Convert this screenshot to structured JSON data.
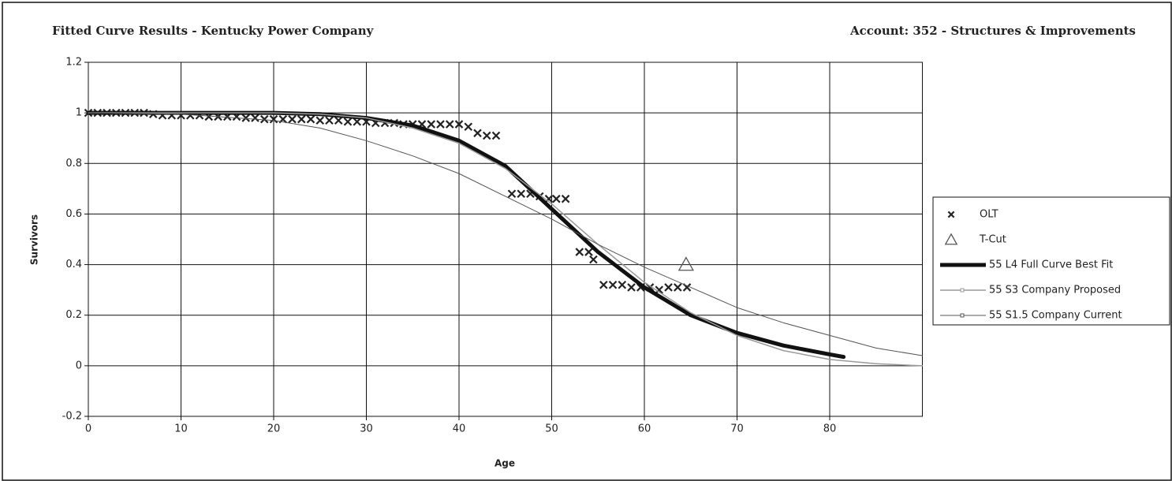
{
  "chart_data": {
    "type": "line",
    "title": "Fitted Curve Results - Kentucky Power Company",
    "subtitle": "Account:  352 - Structures & Improvements",
    "x_label": "Age",
    "y_label": "Survivors",
    "xlim": [
      0,
      90
    ],
    "ylim": [
      -0.2,
      1.2
    ],
    "xticks": [
      0,
      10,
      20,
      30,
      40,
      50,
      60,
      70,
      80
    ],
    "yticks": [
      -0.2,
      0,
      0.2,
      0.4,
      0.6,
      0.8,
      1,
      1.2
    ],
    "grid": true,
    "legend": "right",
    "series": [
      {
        "name": "OLT",
        "color": "#222222",
        "marker": "x",
        "line": false,
        "x": [
          0,
          1,
          2,
          3,
          4,
          5,
          6,
          7,
          8,
          9,
          10,
          11,
          12,
          13,
          14,
          15,
          16,
          17,
          18,
          19,
          20,
          21,
          22,
          23,
          24,
          25,
          26,
          27,
          28,
          29,
          30,
          31,
          32,
          33,
          34,
          35,
          36,
          37,
          38,
          39,
          40,
          41,
          42,
          43,
          44,
          45.7,
          46.7,
          47.7,
          48.7,
          49.7,
          50.5,
          51.5,
          53,
          54,
          54.5,
          55.6,
          56.6,
          57.6,
          58.6,
          59.6,
          60.6,
          61.6,
          62.6,
          63.6,
          64.6
        ],
        "values": [
          1,
          1,
          1,
          1,
          1,
          1,
          1,
          0.995,
          0.99,
          0.99,
          0.99,
          0.99,
          0.99,
          0.985,
          0.985,
          0.985,
          0.985,
          0.98,
          0.98,
          0.975,
          0.975,
          0.975,
          0.975,
          0.975,
          0.975,
          0.97,
          0.97,
          0.97,
          0.965,
          0.965,
          0.965,
          0.96,
          0.96,
          0.96,
          0.955,
          0.955,
          0.955,
          0.955,
          0.955,
          0.955,
          0.955,
          0.945,
          0.92,
          0.91,
          0.91,
          0.68,
          0.68,
          0.68,
          0.67,
          0.66,
          0.66,
          0.66,
          0.45,
          0.45,
          0.42,
          0.32,
          0.32,
          0.32,
          0.31,
          0.31,
          0.31,
          0.3,
          0.31,
          0.31,
          0.31
        ]
      },
      {
        "name": "T-Cut",
        "color": "#555555",
        "marker": "triangle",
        "line": false,
        "x": [
          64.5
        ],
        "values": [
          0.4
        ]
      },
      {
        "name": "55 L4 Full Curve Best Fit",
        "color": "#111111",
        "marker": "none",
        "line": true,
        "width": 5,
        "x": [
          0,
          20,
          25,
          30,
          35,
          40,
          45,
          50,
          55,
          60,
          65,
          70,
          75,
          80,
          81.5
        ],
        "values": [
          1,
          1,
          0.995,
          0.98,
          0.95,
          0.89,
          0.79,
          0.62,
          0.45,
          0.31,
          0.2,
          0.13,
          0.08,
          0.045,
          0.035
        ]
      },
      {
        "name": "55 S3 Company Proposed",
        "color": "#9a9a9a",
        "marker": "square",
        "line": true,
        "width": 1.5,
        "x": [
          0,
          20,
          25,
          30,
          35,
          40,
          45,
          50,
          55,
          60,
          65,
          70,
          75,
          80,
          85,
          90
        ],
        "values": [
          1,
          1,
          0.995,
          0.98,
          0.94,
          0.88,
          0.78,
          0.64,
          0.48,
          0.33,
          0.21,
          0.12,
          0.06,
          0.025,
          0.008,
          0
        ]
      },
      {
        "name": "55 S1.5 Company Current",
        "color": "#555555",
        "marker": "square",
        "line": true,
        "width": 1,
        "x": [
          0,
          10,
          20,
          25,
          30,
          35,
          40,
          45,
          50,
          55,
          60,
          65,
          70,
          75,
          80,
          85,
          90
        ],
        "values": [
          1,
          0.995,
          0.97,
          0.94,
          0.89,
          0.83,
          0.76,
          0.67,
          0.58,
          0.48,
          0.39,
          0.31,
          0.23,
          0.17,
          0.12,
          0.07,
          0.04
        ]
      }
    ]
  }
}
